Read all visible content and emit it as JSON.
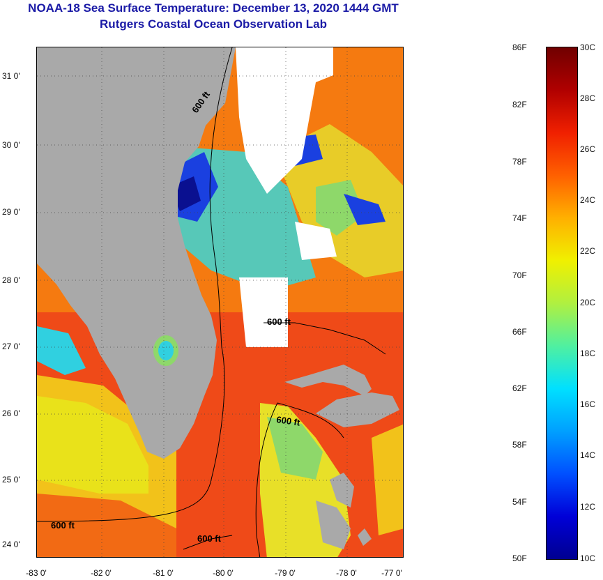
{
  "header": {
    "title": "NOAA-18 Sea Surface Temperature:  December 13, 2020 1444 GMT",
    "subtitle": "Rutgers Coastal Ocean Observation Lab"
  },
  "map": {
    "lat_labels": [
      "31 0'",
      "30 0'",
      "29 0'",
      "28 0'",
      "27 0'",
      "26 0'",
      "25 0'",
      "24 0'"
    ],
    "lon_labels": [
      "-83 0'",
      "-82 0'",
      "-81 0'",
      "-80 0'",
      "-79 0'",
      "-78 0'",
      "-77 0'"
    ],
    "isobath_labels": [
      "600 ft",
      "600 ft",
      "600 ft",
      "600 ft",
      "600 ft"
    ],
    "colors": {
      "land": "#a9a9a9",
      "cloud": "#ffffff",
      "warm": "#ef4a18",
      "orange": "#f57a10",
      "yellow": "#f0e010",
      "green": "#8ad860",
      "cyan": "#30d0e0",
      "blue": "#1a40e0",
      "navy": "#0a1090"
    }
  },
  "colorbar": {
    "fahrenheit_labels": [
      "86F",
      "82F",
      "78F",
      "74F",
      "70F",
      "66F",
      "62F",
      "58F",
      "54F",
      "50F"
    ],
    "celsius_labels": [
      "30C",
      "28C",
      "26C",
      "24C",
      "22C",
      "20C",
      "18C",
      "16C",
      "14C",
      "12C",
      "10C"
    ],
    "range_c": [
      10,
      30
    ],
    "gradient": [
      "#000090",
      "#0000d8",
      "#0050ff",
      "#00a0ff",
      "#00e0ff",
      "#50f0a0",
      "#b0f040",
      "#f0f000",
      "#ffb000",
      "#ff6000",
      "#f02000",
      "#b00000",
      "#700000"
    ]
  }
}
